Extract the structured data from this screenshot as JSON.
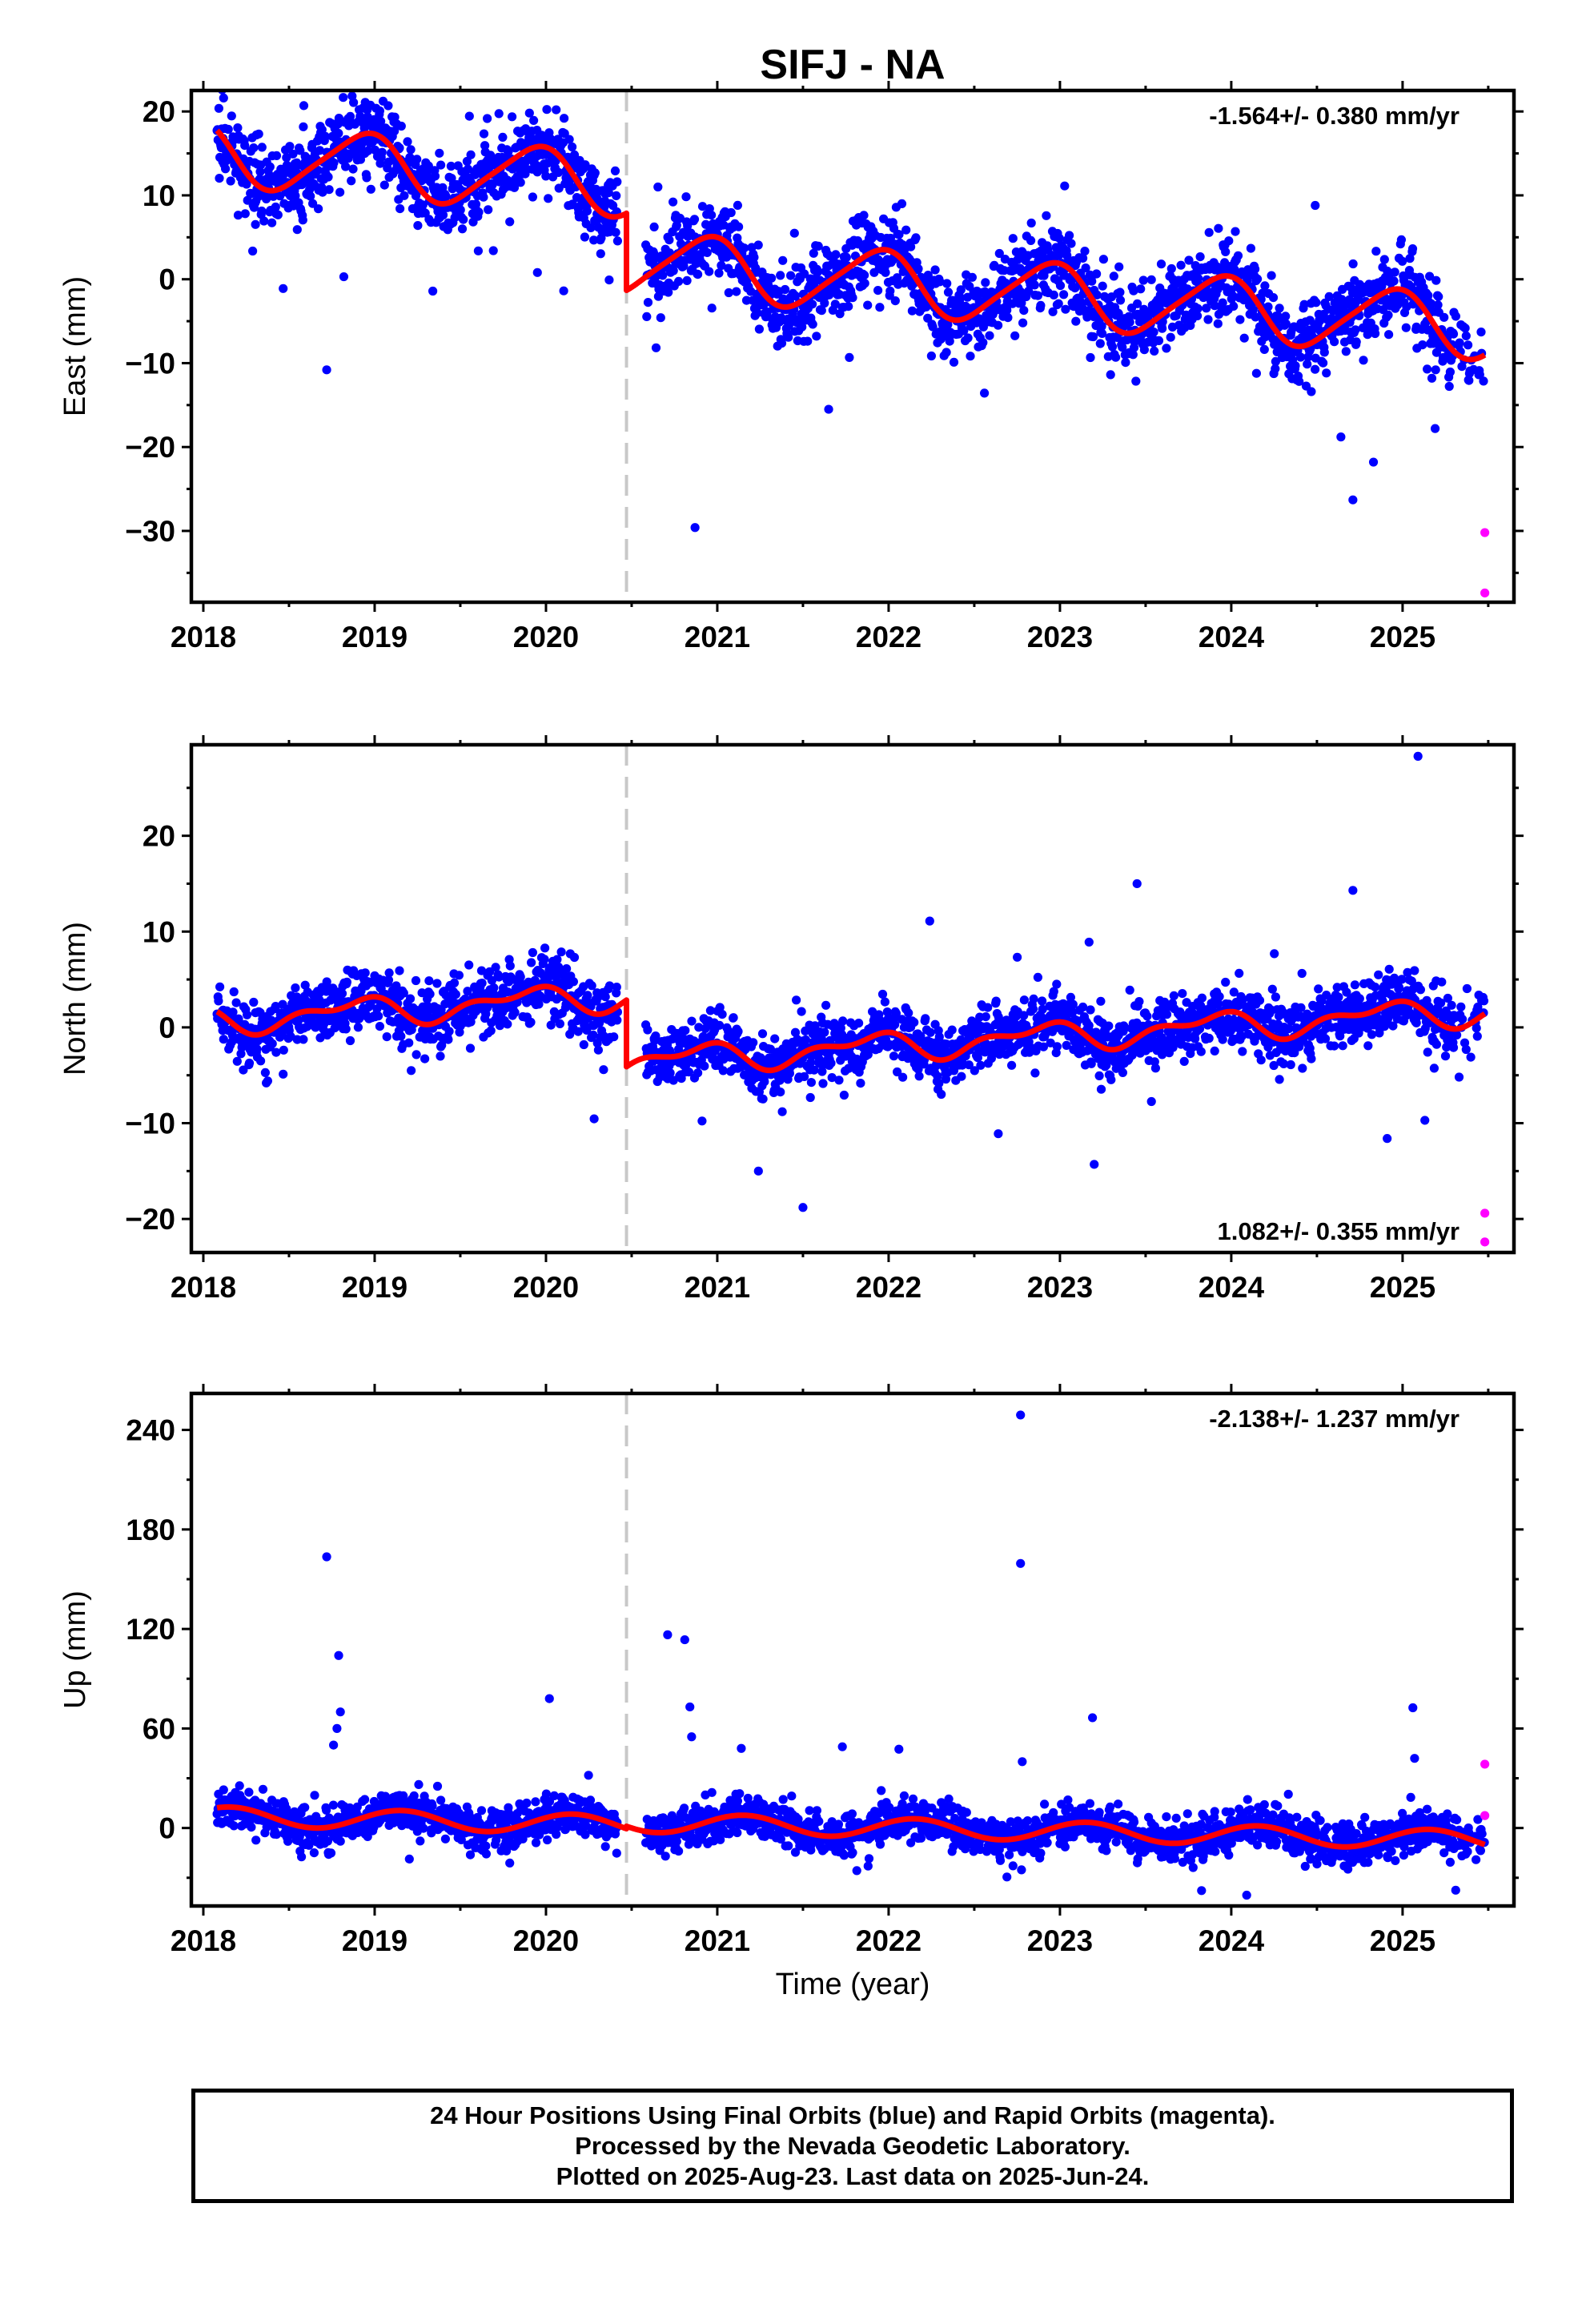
{
  "title": "SIFJ - NA",
  "xlabel": "Time (year)",
  "footer": {
    "line1": "24 Hour Positions Using Final Orbits (blue) and Rapid Orbits (magenta).",
    "line2": "Processed by the Nevada Geodetic Laboratory.",
    "line3": "Plotted on 2025-Aug-23. Last data on 2025-Jun-24."
  },
  "colors": {
    "final": "#0000ff",
    "rapid": "#ff00ff",
    "model": "#ff0000",
    "break": "#c8c8c8"
  },
  "chart_data": [
    {
      "type": "scatter",
      "component": "east",
      "ylabel": "East (mm)",
      "rate": "-1.564+/- 0.380 mm/yr",
      "rate_position": "top-right",
      "xlim": [
        2017.93,
        2025.65
      ],
      "ylim": [
        -38.5,
        22.5
      ],
      "xticks": [
        2018,
        2019,
        2020,
        2021,
        2022,
        2023,
        2024,
        2025
      ],
      "yticks": [
        -30,
        -20,
        -10,
        0,
        10,
        20
      ],
      "data_start": 2018.08,
      "data_gap": [
        2020.42,
        2020.58
      ],
      "data_end": 2025.48,
      "break_epoch": 2020.47,
      "model": {
        "offset": 14.5,
        "rate": -1.564,
        "annual_amp": 3.7,
        "annual_phase": 2.0,
        "semiannual_amp": 0.6,
        "semiannual_phase": 0.8,
        "step": -9.2,
        "mean_before": 12.8,
        "mean_after": -1.9
      },
      "noise_sigma": 2.4,
      "outliers": [
        {
          "x": 2018.72,
          "y": -10.8
        },
        {
          "x": 2018.82,
          "y": 0.3
        },
        {
          "x": 2019.95,
          "y": 0.8
        },
        {
          "x": 2020.87,
          "y": -29.6
        },
        {
          "x": 2021.65,
          "y": -15.5
        },
        {
          "x": 2024.71,
          "y": -26.3
        },
        {
          "x": 2024.83,
          "y": -21.8
        },
        {
          "x": 2024.64,
          "y": -18.8
        },
        {
          "x": 2025.19,
          "y": -17.8
        },
        {
          "x": 2024.49,
          "y": 8.8
        }
      ],
      "rapid": [
        {
          "x": 2025.48,
          "y": -30.2
        },
        {
          "x": 2025.48,
          "y": -37.4
        }
      ]
    },
    {
      "type": "scatter",
      "component": "north",
      "ylabel": "North (mm)",
      "rate": "1.082+/- 0.355 mm/yr",
      "rate_position": "bottom-right",
      "xlim": [
        2017.93,
        2025.65
      ],
      "ylim": [
        -23.5,
        29.5
      ],
      "xticks": [
        2018,
        2019,
        2020,
        2021,
        2022,
        2023,
        2024,
        2025
      ],
      "yticks": [
        -20,
        -10,
        0,
        10,
        20
      ],
      "data_start": 2018.08,
      "data_gap": [
        2020.42,
        2020.58
      ],
      "data_end": 2025.48,
      "break_epoch": 2020.47,
      "model": {
        "offset": 3.2,
        "rate": 1.082,
        "annual_amp": 1.2,
        "annual_phase": 2.4,
        "semiannual_amp": 0.7,
        "semiannual_phase": 1.1,
        "step": -6.8,
        "mean_before": 1.9,
        "mean_after": -0.9
      },
      "noise_sigma": 1.6,
      "outliers": [
        {
          "x": 2021.24,
          "y": -15.0
        },
        {
          "x": 2021.5,
          "y": -18.8
        },
        {
          "x": 2022.24,
          "y": 11.1
        },
        {
          "x": 2023.17,
          "y": 8.9
        },
        {
          "x": 2023.2,
          "y": -14.3
        },
        {
          "x": 2023.45,
          "y": 15.0
        },
        {
          "x": 2024.71,
          "y": 14.3
        },
        {
          "x": 2025.09,
          "y": 28.3
        },
        {
          "x": 2024.91,
          "y": -11.6
        },
        {
          "x": 2025.13,
          "y": -9.7
        },
        {
          "x": 2022.64,
          "y": -11.1
        }
      ],
      "rapid": [
        {
          "x": 2025.48,
          "y": -19.4
        },
        {
          "x": 2025.48,
          "y": -22.4
        }
      ]
    },
    {
      "type": "scatter",
      "component": "up",
      "ylabel": "Up (mm)",
      "rate": "-2.138+/- 1.237 mm/yr",
      "rate_position": "top-right",
      "xlim": [
        2017.93,
        2025.65
      ],
      "ylim": [
        -47,
        262
      ],
      "xticks": [
        2018,
        2019,
        2020,
        2021,
        2022,
        2023,
        2024,
        2025
      ],
      "yticks": [
        0,
        60,
        120,
        180,
        240
      ],
      "data_start": 2018.08,
      "data_gap": [
        2020.42,
        2020.58
      ],
      "data_end": 2025.48,
      "break_epoch": 2020.47,
      "model": {
        "offset": 7.5,
        "rate": -2.138,
        "annual_amp": 5.8,
        "annual_phase": 0.6,
        "semiannual_amp": 0.0,
        "semiannual_phase": 0.0,
        "step": 0,
        "mean_before": 5,
        "mean_after": -2
      },
      "noise_sigma": 6.0,
      "outliers": [
        {
          "x": 2018.72,
          "y": 163.5
        },
        {
          "x": 2018.79,
          "y": 104.0
        },
        {
          "x": 2018.8,
          "y": 70.0
        },
        {
          "x": 2018.78,
          "y": 60.0
        },
        {
          "x": 2018.76,
          "y": 50.0
        },
        {
          "x": 2020.02,
          "y": 78.0
        },
        {
          "x": 2020.71,
          "y": 116.5
        },
        {
          "x": 2020.81,
          "y": 113.5
        },
        {
          "x": 2020.84,
          "y": 73.0
        },
        {
          "x": 2020.85,
          "y": 55.0
        },
        {
          "x": 2022.77,
          "y": 249.0
        },
        {
          "x": 2022.77,
          "y": 159.5
        },
        {
          "x": 2022.78,
          "y": 40.0
        },
        {
          "x": 2023.19,
          "y": 66.5
        },
        {
          "x": 2025.06,
          "y": 72.5
        },
        {
          "x": 2025.07,
          "y": 42.0
        },
        {
          "x": 2021.14,
          "y": 48.0
        },
        {
          "x": 2021.73,
          "y": 49.0
        },
        {
          "x": 2022.06,
          "y": 47.5
        },
        {
          "x": 2024.09,
          "y": -40.5
        },
        {
          "x": 2025.31,
          "y": -37.5
        }
      ],
      "rapid": [
        {
          "x": 2025.48,
          "y": 38.5
        },
        {
          "x": 2025.48,
          "y": 7.5
        }
      ]
    }
  ]
}
